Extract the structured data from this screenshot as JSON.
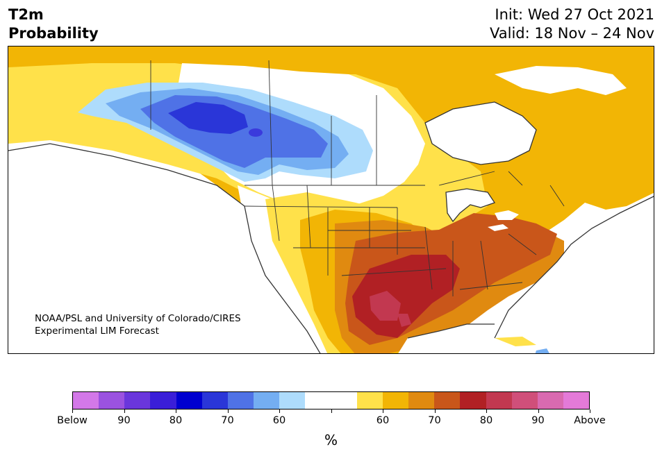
{
  "header": {
    "title_line1": "T2m",
    "title_line2": "Probability",
    "init": "Init: Wed 27 Oct 2021",
    "valid": "Valid: 18 Nov – 24 Nov"
  },
  "credit": {
    "line1": "NOAA/PSL and University of Colorado/CIRES",
    "line2": "Experimental LIM Forecast"
  },
  "colorbar": {
    "unit": "%",
    "colors": [
      "#d378e8",
      "#9b52e0",
      "#6a36dc",
      "#3a1ed8",
      "#0000d0",
      "#2a36d8",
      "#4f72e6",
      "#74aef2",
      "#aedcfc",
      "#ffffff",
      "#ffffff",
      "#ffe14a",
      "#f2b505",
      "#e08a10",
      "#c9561a",
      "#b12024",
      "#c23850",
      "#d04f7a",
      "#d96ab0",
      "#e47ad8"
    ],
    "labels": [
      "Below",
      "90",
      "80",
      "70",
      "60",
      "",
      "60",
      "70",
      "80",
      "90",
      "Above"
    ]
  },
  "map": {
    "region": "North America",
    "colors": {
      "ocean": "#ffffff",
      "light_yellow": "#ffe14a",
      "gold": "#f2b505",
      "orange": "#e08a10",
      "dark_orange": "#c9561a",
      "red": "#b12024",
      "magenta": "#c23850",
      "pale_blue": "#aedcfc",
      "light_blue": "#74aef2",
      "medium_blue": "#4f72e6",
      "blue": "#2a36d8",
      "deep_blue": "#0000d0",
      "border": "#333333"
    }
  }
}
